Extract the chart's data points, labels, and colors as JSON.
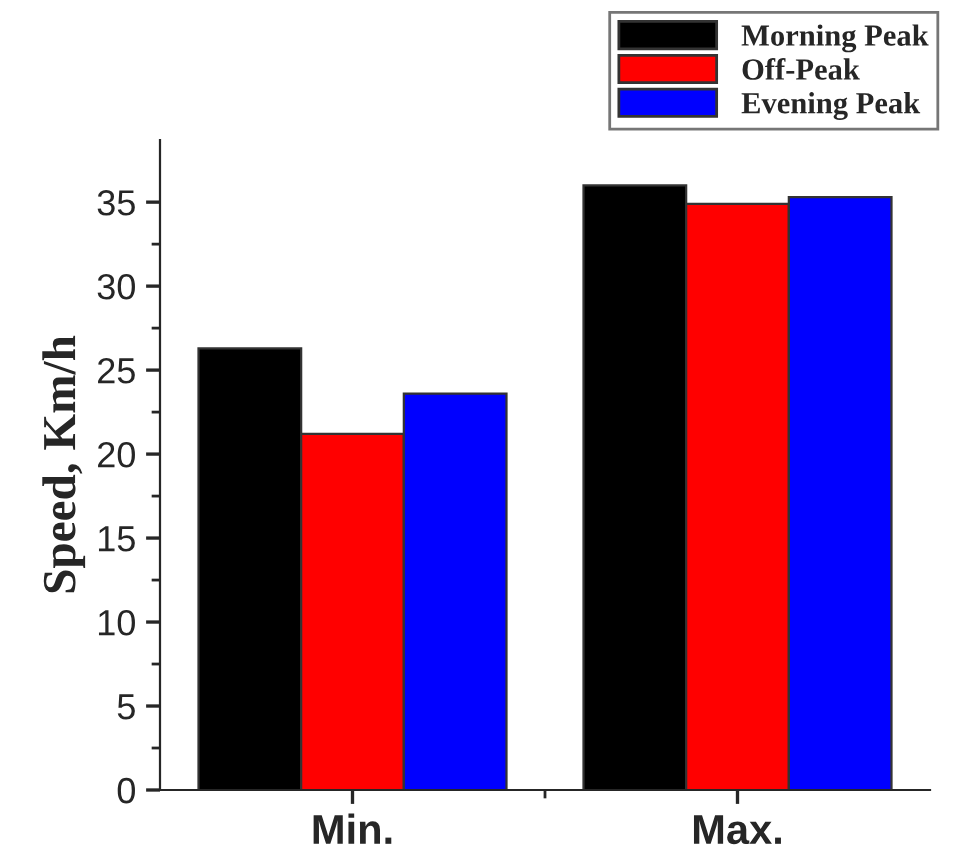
{
  "chart_data": {
    "type": "bar",
    "ylabel": "Speed, Km/h",
    "categories": [
      "Min.",
      "Max."
    ],
    "series": [
      {
        "name": "Morning Peak",
        "color": "#000000",
        "values": [
          26.3,
          36.0
        ]
      },
      {
        "name": "Off-Peak",
        "color": "#ff0000",
        "values": [
          21.2,
          34.9
        ]
      },
      {
        "name": "Evening Peak",
        "color": "#0000ff",
        "values": [
          23.6,
          35.3
        ]
      }
    ],
    "ylim": [
      0,
      38.7
    ],
    "yticks": [
      0,
      5,
      10,
      15,
      20,
      25,
      30,
      35
    ],
    "grid": false,
    "legend": "top right"
  }
}
